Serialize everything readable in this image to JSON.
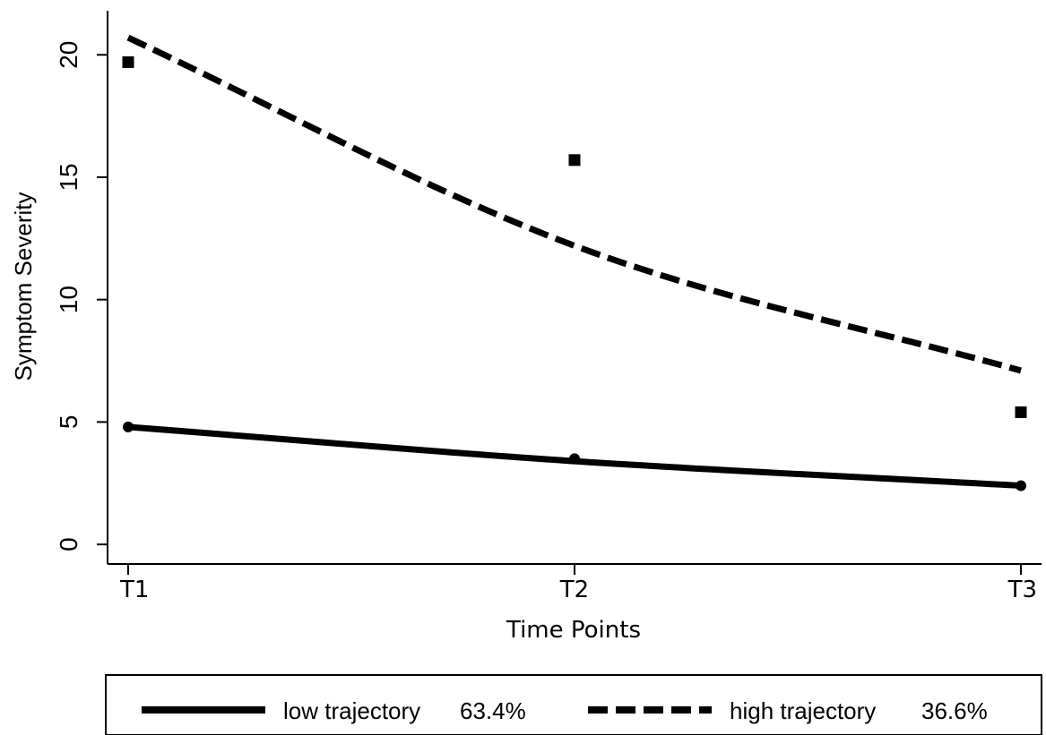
{
  "chart_data": {
    "type": "line",
    "title": "",
    "xlabel": "Time Points",
    "ylabel": "Symptom Severity",
    "categories": [
      "T1",
      "T2",
      "T3"
    ],
    "ylim": [
      -0.8,
      21.8
    ],
    "yticks": [
      0,
      5,
      10,
      15,
      20
    ],
    "grid": false,
    "legend_position": "bottom",
    "series": [
      {
        "name": "low trajectory",
        "share": "63.4%",
        "style": "solid",
        "marker": "circle",
        "color": "#000000",
        "fitted": [
          4.8,
          3.4,
          2.4
        ],
        "observed": [
          4.8,
          3.5,
          2.4
        ]
      },
      {
        "name": "high trajectory",
        "share": "36.6%",
        "style": "dashed",
        "marker": "square",
        "color": "#000000",
        "fitted": [
          20.7,
          12.2,
          7.1
        ],
        "observed": [
          19.7,
          15.7,
          5.4
        ]
      }
    ]
  }
}
